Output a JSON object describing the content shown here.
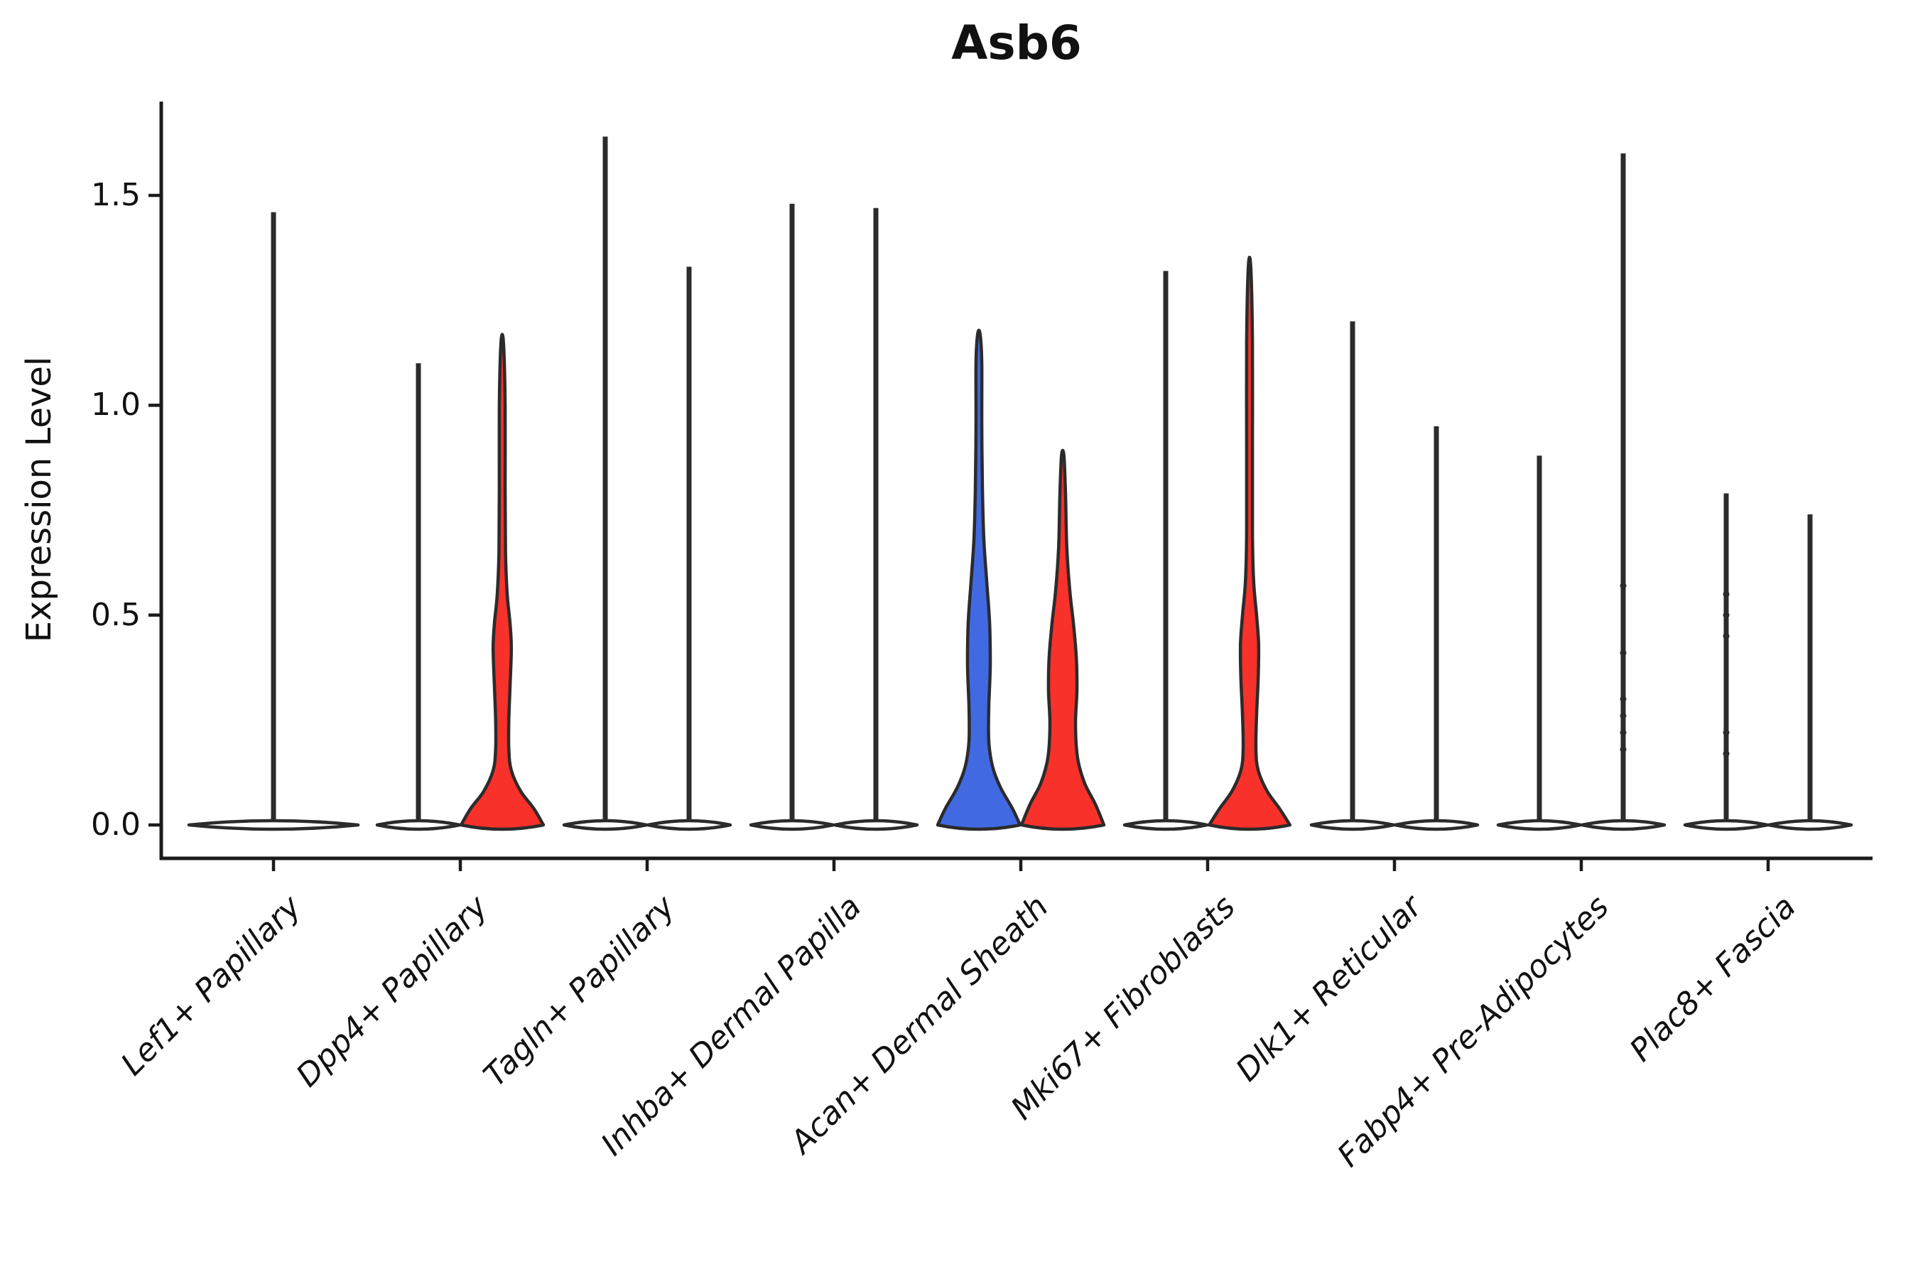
{
  "title": "Asb6",
  "y_axis": {
    "label": "Expression Level",
    "ticks": [
      "0.0",
      "0.5",
      "1.0",
      "1.5"
    ],
    "tick_values": [
      0.0,
      0.5,
      1.0,
      1.5
    ]
  },
  "colors": {
    "red": "#f8312a",
    "blue": "#4169e1",
    "stroke": "#2b2b2b",
    "axis": "#1c1c1c",
    "background": "#ffffff"
  },
  "chart_data": {
    "type": "violin",
    "title": "Asb6",
    "xlabel": "",
    "ylabel": "Expression Level",
    "ylim": [
      0,
      1.72
    ],
    "yticks": [
      0.0,
      0.5,
      1.0,
      1.5
    ],
    "grid": false,
    "legend": "none",
    "categories": [
      "Lef1+ Papillary",
      "Dpp4+ Papillary",
      "Tagln+ Papillary",
      "Inhba+ Dermal Papilla",
      "Acan+ Dermal Sheath",
      "Mki67+ Fibroblasts",
      "Dlk1+ Reticular",
      "Fabp4+ Pre-Adipocytes",
      "Plac8+ Fascia"
    ],
    "groups": [
      {
        "category": "Lef1+ Papillary",
        "violins": [
          {
            "pos": "full",
            "type": "spike",
            "fill": "white",
            "max": 1.46,
            "bulk_at": 0.0
          }
        ]
      },
      {
        "category": "Dpp4+ Papillary",
        "violins": [
          {
            "pos": "left",
            "type": "spike",
            "fill": "white",
            "max": 1.1,
            "bulk_at": 0.0
          },
          {
            "pos": "right",
            "type": "shaped",
            "fill": "red",
            "max": 1.15,
            "bulk_at": 0.0,
            "profile": [
              [
                0,
                1.0
              ],
              [
                0.04,
                0.76
              ],
              [
                0.08,
                0.45
              ],
              [
                0.13,
                0.22
              ],
              [
                0.18,
                0.16
              ],
              [
                0.25,
                0.16
              ],
              [
                0.33,
                0.19
              ],
              [
                0.42,
                0.22
              ],
              [
                0.48,
                0.19
              ],
              [
                0.55,
                0.12
              ],
              [
                0.65,
                0.08
              ],
              [
                0.8,
                0.07
              ],
              [
                1.0,
                0.07
              ],
              [
                1.15,
                0.03
              ]
            ]
          }
        ]
      },
      {
        "category": "Tagln+ Papillary",
        "violins": [
          {
            "pos": "left",
            "type": "spike",
            "fill": "white",
            "max": 1.64,
            "bulk_at": 0.0
          },
          {
            "pos": "right",
            "type": "spike",
            "fill": "white",
            "max": 1.33,
            "bulk_at": 0.0
          }
        ]
      },
      {
        "category": "Inhba+ Dermal Papilla",
        "violins": [
          {
            "pos": "left",
            "type": "spike",
            "fill": "white",
            "max": 1.48,
            "bulk_at": 0.0
          },
          {
            "pos": "right",
            "type": "spike",
            "fill": "white",
            "max": 1.47,
            "bulk_at": 0.0
          }
        ]
      },
      {
        "category": "Acan+ Dermal Sheath",
        "violins": [
          {
            "pos": "left",
            "type": "shaped",
            "fill": "blue",
            "max": 1.17,
            "bulk_at": 0.0,
            "profile": [
              [
                0,
                1.0
              ],
              [
                0.04,
                0.81
              ],
              [
                0.09,
                0.52
              ],
              [
                0.14,
                0.33
              ],
              [
                0.2,
                0.24
              ],
              [
                0.28,
                0.24
              ],
              [
                0.38,
                0.275
              ],
              [
                0.48,
                0.26
              ],
              [
                0.58,
                0.19
              ],
              [
                0.68,
                0.12
              ],
              [
                0.8,
                0.086
              ],
              [
                0.95,
                0.07
              ],
              [
                1.1,
                0.07
              ],
              [
                1.17,
                0.03
              ]
            ]
          },
          {
            "pos": "right",
            "type": "shaped",
            "fill": "red",
            "max": 0.88,
            "bulk_at": 0.0,
            "profile": [
              [
                0,
                1.0
              ],
              [
                0.05,
                0.79
              ],
              [
                0.1,
                0.53
              ],
              [
                0.16,
                0.36
              ],
              [
                0.24,
                0.31
              ],
              [
                0.32,
                0.345
              ],
              [
                0.4,
                0.33
              ],
              [
                0.48,
                0.26
              ],
              [
                0.56,
                0.17
              ],
              [
                0.66,
                0.1
              ],
              [
                0.78,
                0.07
              ],
              [
                0.88,
                0.03
              ]
            ]
          }
        ]
      },
      {
        "category": "Mki67+ Fibroblasts",
        "violins": [
          {
            "pos": "left",
            "type": "spike",
            "fill": "white",
            "max": 1.32,
            "bulk_at": 0.0
          },
          {
            "pos": "right",
            "type": "shaped",
            "fill": "red",
            "max": 1.33,
            "bulk_at": 0.0,
            "profile": [
              [
                0,
                0.98
              ],
              [
                0.04,
                0.72
              ],
              [
                0.08,
                0.43
              ],
              [
                0.13,
                0.21
              ],
              [
                0.18,
                0.155
              ],
              [
                0.26,
                0.17
              ],
              [
                0.35,
                0.21
              ],
              [
                0.43,
                0.22
              ],
              [
                0.5,
                0.17
              ],
              [
                0.58,
                0.1
              ],
              [
                0.7,
                0.07
              ],
              [
                0.9,
                0.07
              ],
              [
                1.15,
                0.07
              ],
              [
                1.33,
                0.03
              ]
            ]
          }
        ]
      },
      {
        "category": "Dlk1+ Reticular",
        "violins": [
          {
            "pos": "left",
            "type": "spike",
            "fill": "white",
            "max": 1.2,
            "bulk_at": 0.0
          },
          {
            "pos": "right",
            "type": "spike",
            "fill": "white",
            "max": 0.95,
            "bulk_at": 0.0
          }
        ]
      },
      {
        "category": "Fabp4+ Pre-Adipocytes",
        "violins": [
          {
            "pos": "left",
            "type": "spike",
            "fill": "white",
            "max": 0.88,
            "bulk_at": 0.0
          },
          {
            "pos": "right",
            "type": "spike",
            "fill": "white",
            "max": 1.6,
            "bulk_at": 0.0,
            "points": [
              0.57,
              0.41,
              0.3,
              0.26,
              0.22,
              0.18
            ]
          }
        ]
      },
      {
        "category": "Plac8+ Fascia",
        "violins": [
          {
            "pos": "left",
            "type": "spike",
            "fill": "white",
            "max": 0.79,
            "bulk_at": 0.0,
            "points": [
              0.55,
              0.5,
              0.45,
              0.22,
              0.17
            ]
          },
          {
            "pos": "right",
            "type": "spike",
            "fill": "white",
            "max": 0.74,
            "bulk_at": 0.0
          }
        ]
      }
    ]
  }
}
